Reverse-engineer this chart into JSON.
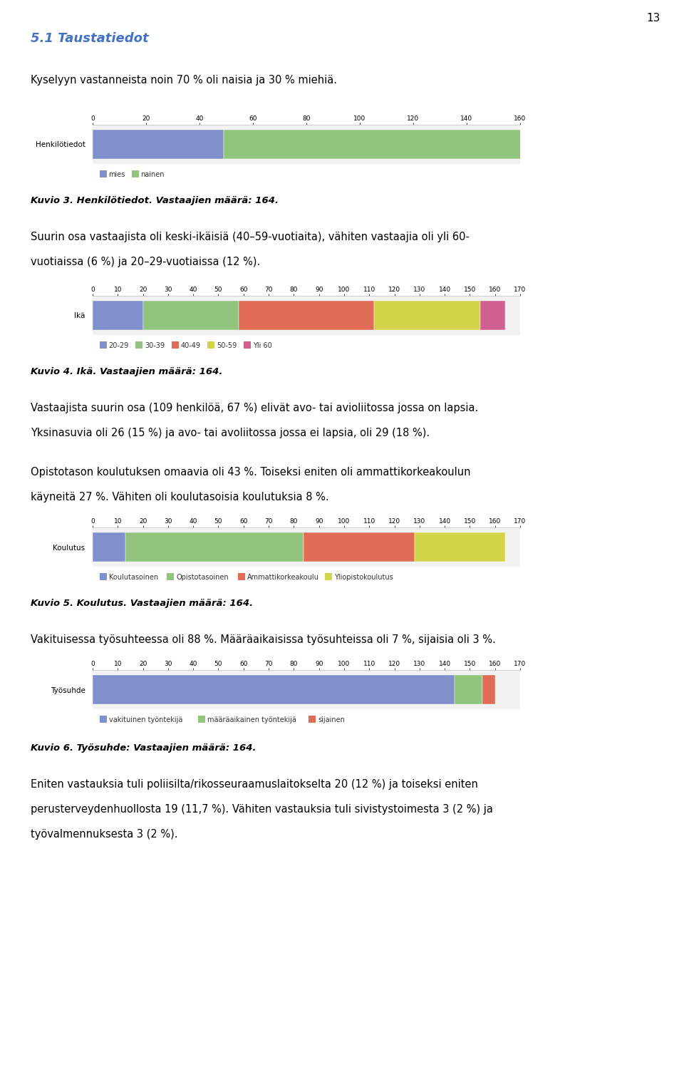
{
  "page_number": "13",
  "section_title": "5.1 Taustatiedot",
  "section_title_color": "#4472c4",
  "background_color": "#ffffff",
  "text_color": "#000000",
  "paragraph1": "Kyselyyn vastanneista noin 70 % oli naisia ja 30 % miehiä.",
  "chart1": {
    "ylabel": "Henkilötiedot",
    "segments": [
      49,
      115
    ],
    "colors": [
      "#8090cc",
      "#92c47d"
    ],
    "legend_labels": [
      "mies",
      "nainen"
    ],
    "xlim": [
      0,
      160
    ],
    "xticks": [
      0,
      20,
      40,
      60,
      80,
      100,
      120,
      140,
      160
    ]
  },
  "caption1": "Kuvio 3. Henkilötiedot. Vastaajien määrä: 164.",
  "paragraph2_line1": "Suurin osa vastaajista oli keski-ikäisiä (40–59-vuotiaita), vähiten vastaajia oli yli 60-",
  "paragraph2_line2": "vuotiaissa (6 %) ja 20–29-vuotiaissa (12 %).",
  "chart2": {
    "ylabel": "Ikä",
    "segments": [
      20,
      38,
      54,
      42,
      10
    ],
    "colors": [
      "#8090cc",
      "#92c47d",
      "#e06c55",
      "#d4d44a",
      "#d06090"
    ],
    "legend_labels": [
      "20-29",
      "30-39",
      "40-49",
      "50-59",
      "Yli 60"
    ],
    "xlim": [
      0,
      170
    ],
    "xticks": [
      0,
      10,
      20,
      30,
      40,
      50,
      60,
      70,
      80,
      90,
      100,
      110,
      120,
      130,
      140,
      150,
      160,
      170
    ]
  },
  "caption2": "Kuvio 4. Ikä. Vastaajien määrä: 164.",
  "paragraph3a": "Vastaajista suurin osa (109 henkilöä, 67 %) elivät avo- tai avioliitossa jossa on lapsia.",
  "paragraph3b": "Yksinasuvia oli 26 (15 %) ja avo- tai avoliitossa jossa ei lapsia, oli 29 (18 %).",
  "paragraph4_line1": "Opistotason koulutuksen omaavia oli 43 %. Toiseksi eniten oli ammattikorkeakoulun",
  "paragraph4_line2": "käyneitä 27 %. Vähiten oli koulutasoisia koulutuksia 8 %.",
  "chart3": {
    "ylabel": "Koulutus",
    "segments": [
      13,
      71,
      44,
      36
    ],
    "colors": [
      "#8090cc",
      "#92c47d",
      "#e06c55",
      "#d4d44a"
    ],
    "legend_labels": [
      "Koulutasoinen",
      "Opistotasoinen",
      "Ammattikorkeakoulu",
      "Yliopistokoulutus"
    ],
    "xlim": [
      0,
      170
    ],
    "xticks": [
      0,
      10,
      20,
      30,
      40,
      50,
      60,
      70,
      80,
      90,
      100,
      110,
      120,
      130,
      140,
      150,
      160,
      170
    ]
  },
  "caption3": "Kuvio 5. Koulutus. Vastaajien määrä: 164.",
  "paragraph5": "Vakituisessa työsuhteessa oli 88 %. Määräaikaisissa työsuhteissa oli 7 %, sijaisia oli 3 %.",
  "chart4": {
    "ylabel": "Työsuhde",
    "segments": [
      144,
      11,
      5
    ],
    "colors": [
      "#8090cc",
      "#92c47d",
      "#e06c55"
    ],
    "legend_labels": [
      "vakituinen työntekijä",
      "määräaikainen työntekijä",
      "sijainen"
    ],
    "xlim": [
      0,
      170
    ],
    "xticks": [
      0,
      10,
      20,
      30,
      40,
      50,
      60,
      70,
      80,
      90,
      100,
      110,
      120,
      130,
      140,
      150,
      160,
      170
    ]
  },
  "caption4": "Kuvio 6. Työsuhde: Vastaajien määrä: 164.",
  "paragraph6_line1": "Eniten vastauksia tuli poliisilta/rikosseuraamuslaitokselta 20 (12 %) ja toiseksi eniten",
  "paragraph6_line2": "perusterveydenhuollosta 19 (11,7 %). Vähiten vastauksia tuli sivistystoimesta 3 (2 %) ja",
  "paragraph6_line3": "työvalmennuksesta 3 (2 %).",
  "chart_facecolor": "#f2f2f2",
  "chart_spine_color": "#c0c0c0",
  "fig_width": 9.6,
  "fig_height": 15.04,
  "dpi": 100
}
